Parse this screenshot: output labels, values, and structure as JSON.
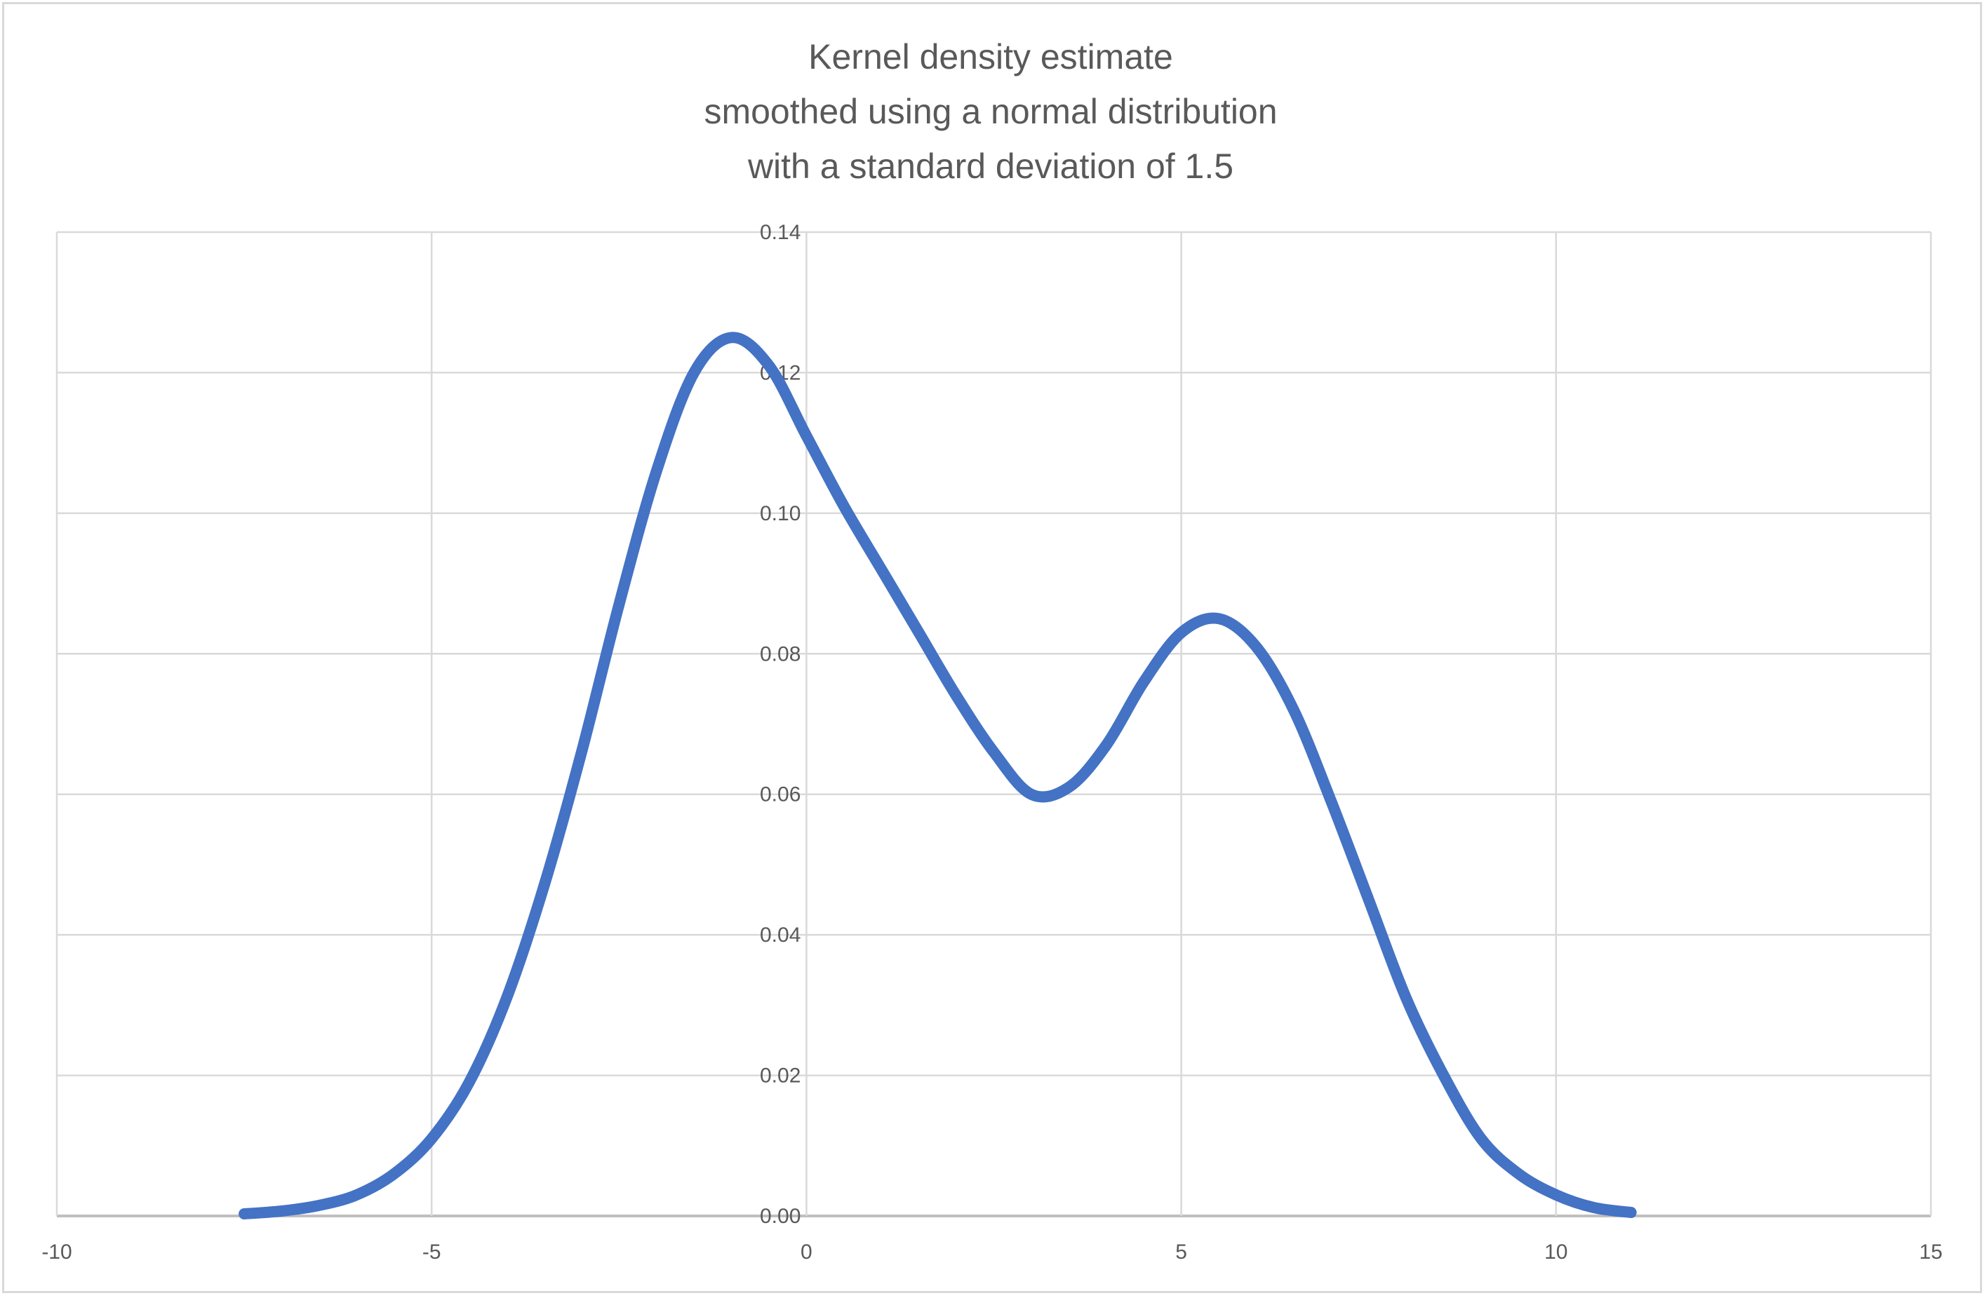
{
  "chart_data": {
    "type": "line",
    "title": [
      "Kernel density estimate",
      "smoothed using a normal distribution",
      "with a standard deviation of 1.5"
    ],
    "xlabel": "",
    "ylabel": "",
    "xlim": [
      -10,
      15
    ],
    "ylim": [
      0,
      0.14
    ],
    "x_ticks": [
      "-10",
      "-5",
      "0",
      "5",
      "10",
      "15"
    ],
    "y_ticks": [
      "0.00",
      "0.02",
      "0.04",
      "0.06",
      "0.08",
      "0.10",
      "0.12",
      "0.14"
    ],
    "grid": true,
    "legend": "none",
    "series": [
      {
        "color": "#4472c4",
        "x": [
          -7.5,
          -7,
          -6.5,
          -6,
          -5.5,
          -5,
          -4.5,
          -4,
          -3.5,
          -3,
          -2.5,
          -2,
          -1.5,
          -1,
          -0.5,
          0,
          0.5,
          1,
          1.5,
          2,
          2.5,
          3,
          3.5,
          4,
          4.5,
          5,
          5.5,
          6,
          6.5,
          7,
          7.5,
          8,
          8.5,
          9,
          9.5,
          10,
          10.5,
          11
        ],
        "y": [
          0.0003,
          0.0007,
          0.0015,
          0.003,
          0.006,
          0.011,
          0.019,
          0.031,
          0.047,
          0.066,
          0.087,
          0.106,
          0.12,
          0.125,
          0.121,
          0.111,
          0.101,
          0.092,
          0.083,
          0.074,
          0.066,
          0.06,
          0.061,
          0.067,
          0.076,
          0.083,
          0.085,
          0.081,
          0.072,
          0.059,
          0.045,
          0.031,
          0.02,
          0.011,
          0.006,
          0.003,
          0.0012,
          0.0005
        ]
      }
    ]
  }
}
